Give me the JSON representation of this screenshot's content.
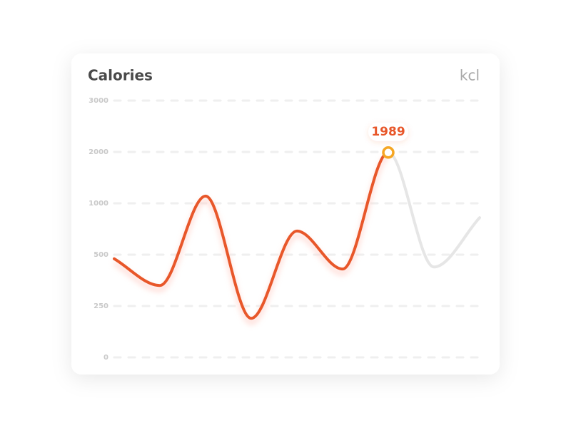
{
  "chart_data": {
    "type": "line",
    "title": "Calories",
    "unit": "kcl",
    "categories": [
      null,
      null,
      null,
      null,
      null,
      null,
      null,
      null,
      null
    ],
    "series": [
      {
        "color": "#e8572a",
        "values": [
          480,
          350,
          1140,
          190,
          730,
          430,
          1989,
          null,
          null
        ]
      },
      {
        "color": "#e6e6e6",
        "values": [
          null,
          null,
          null,
          null,
          null,
          null,
          1989,
          440,
          860
        ]
      }
    ],
    "ylim": [
      0,
      3000
    ],
    "yticks": [
      0,
      250,
      500,
      1000,
      2000,
      3000
    ],
    "grid": true,
    "marker_color": "#f5a623"
  }
}
